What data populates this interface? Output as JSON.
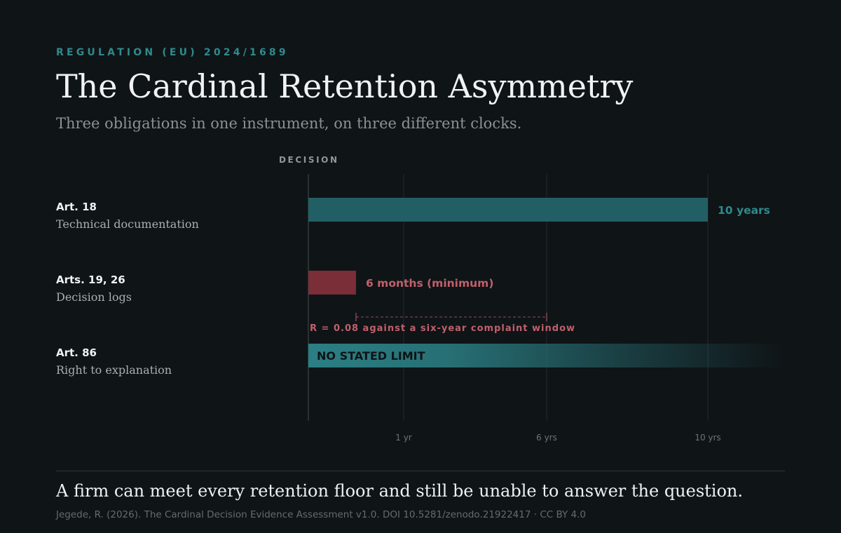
{
  "header": {
    "eyebrow": "REGULATION (EU) 2024/1689",
    "title": "The Cardinal Retention Asymmetry",
    "subtitle": "Three obligations in one instrument, on three different clocks."
  },
  "rows": [
    {
      "article": "Art. 18",
      "description": "Technical documentation"
    },
    {
      "article": "Arts. 19, 26",
      "description": "Decision logs"
    },
    {
      "article": "Art. 86",
      "description": "Right to explanation"
    }
  ],
  "chart_data": {
    "type": "bar",
    "orientation": "horizontal",
    "origin_label": "DECISION",
    "x_unit": "years",
    "x_ticks": [
      {
        "value": 1,
        "label": "1 yr"
      },
      {
        "value": 6,
        "label": "6 yrs"
      },
      {
        "value": 10,
        "label": "10 yrs"
      }
    ],
    "scale": "piecewise (1 yr, 6 yrs, 10 yrs gridlines)",
    "bars": [
      {
        "category": "Art. 18",
        "value": 10,
        "label": "10 years",
        "color": "#215f65"
      },
      {
        "category": "Arts. 19, 26",
        "value": 0.5,
        "label": "6 months (minimum)",
        "color": "#7a2e38"
      },
      {
        "category": "Art. 86",
        "value": null,
        "label": "NO STATED LIMIT",
        "unbounded": true,
        "color": "#2b7f84"
      }
    ],
    "annotation": {
      "text": "R = 0.08 against a six-year complaint window",
      "from": 0.5,
      "to": 6,
      "color": "#c0606b"
    },
    "grid": true,
    "legend": "none"
  },
  "footer": {
    "conclusion": "A firm can meet every retention floor and still be unable to answer the question.",
    "citation": "Jegede, R. (2026). The Cardinal Decision Evidence Assessment v1.0. DOI 10.5281/zenodo.21922417 · CC BY 4.0"
  },
  "colors": {
    "background": "#0f1417",
    "accent_teal": "#2f8a8c",
    "accent_red": "#c0606b"
  }
}
